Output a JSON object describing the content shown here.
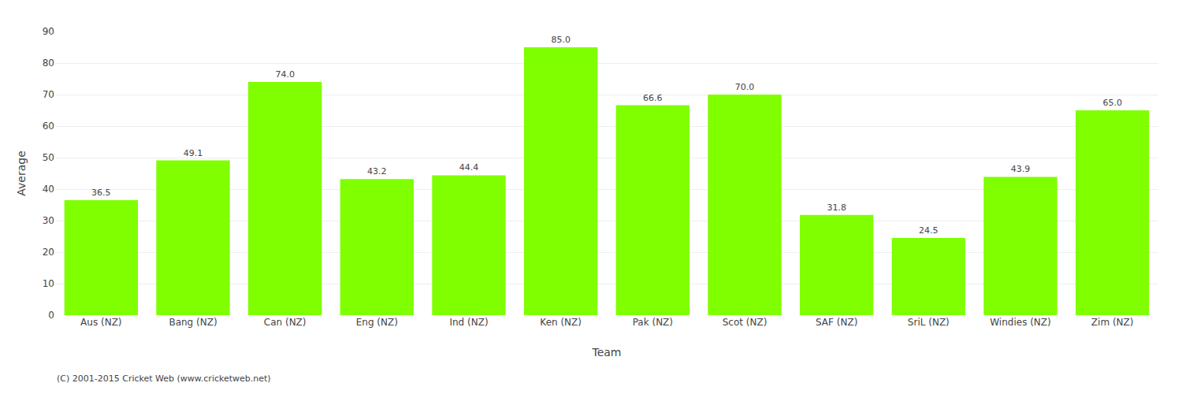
{
  "chart_data": {
    "type": "bar",
    "xlabel": "Team",
    "ylabel": "Average",
    "categories": [
      "Aus (NZ)",
      "Bang (NZ)",
      "Can (NZ)",
      "Eng (NZ)",
      "Ind (NZ)",
      "Ken (NZ)",
      "Pak (NZ)",
      "Scot (NZ)",
      "SAF (NZ)",
      "SriL (NZ)",
      "Windies (NZ)",
      "Zim (NZ)"
    ],
    "values": [
      36.5,
      49.1,
      74.0,
      43.2,
      44.4,
      85.0,
      66.6,
      70.0,
      31.8,
      24.5,
      43.9,
      65.0
    ],
    "value_labels": [
      "36.5",
      "49.1",
      "74.0",
      "43.2",
      "44.4",
      "85.0",
      "66.6",
      "70.0",
      "31.8",
      "24.5",
      "43.9",
      "65.0"
    ],
    "data_labels": true,
    "color": "#7FFF00",
    "ylim": [
      0,
      90
    ],
    "yticks": [
      0,
      10,
      20,
      30,
      40,
      50,
      60,
      70,
      80,
      90
    ],
    "grid": true,
    "annotations": [
      "(C) 2001-2015 Cricket Web (www.cricketweb.net)"
    ]
  }
}
